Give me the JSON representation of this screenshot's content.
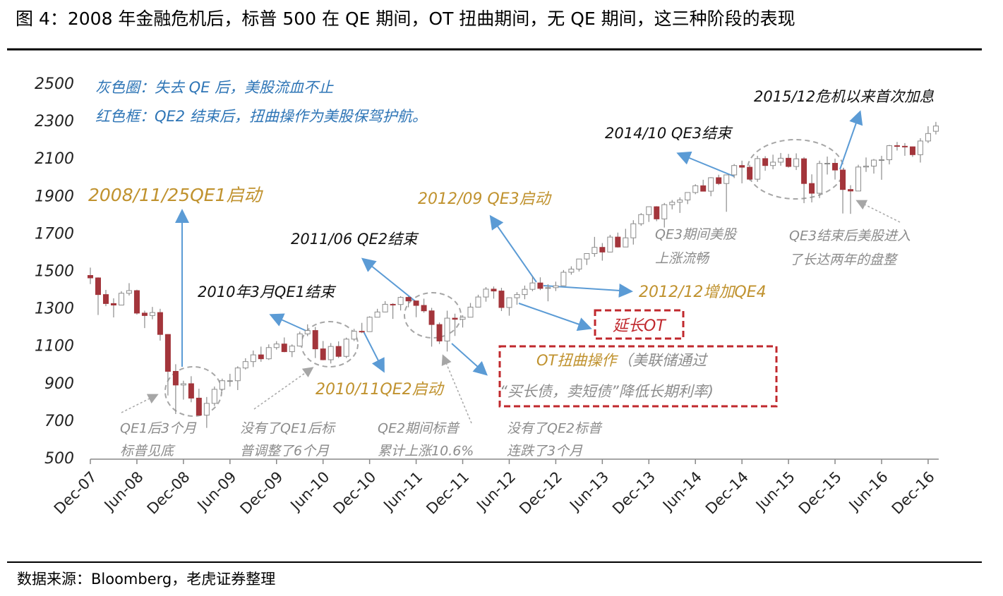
{
  "chart_data": {
    "type": "candlestick",
    "title": "图 4：2008 年金融危机后，标普 500 在 QE 期间，OT 扭曲期间，无 QE 期间，这三种阶段的表现",
    "source": "数据来源：Bloomberg，老虎证券整理",
    "up_color": "#ffffff",
    "down_color": "#a3353b",
    "edge_color": "#8c8c8c",
    "ylim": [
      500,
      2500
    ],
    "yticks": [
      500,
      700,
      900,
      1100,
      1300,
      1500,
      1700,
      1900,
      2100,
      2300,
      2500
    ],
    "categories": [
      "Dec-07",
      "Jan-08",
      "Feb-08",
      "Mar-08",
      "Apr-08",
      "May-08",
      "Jun-08",
      "Jul-08",
      "Aug-08",
      "Sep-08",
      "Oct-08",
      "Nov-08",
      "Dec-08",
      "Jan-09",
      "Feb-09",
      "Mar-09",
      "Apr-09",
      "May-09",
      "Jun-09",
      "Jul-09",
      "Aug-09",
      "Sep-09",
      "Oct-09",
      "Nov-09",
      "Dec-09",
      "Jan-10",
      "Feb-10",
      "Mar-10",
      "Apr-10",
      "May-10",
      "Jun-10",
      "Jul-10",
      "Aug-10",
      "Sep-10",
      "Oct-10",
      "Nov-10",
      "Dec-10",
      "Jan-11",
      "Feb-11",
      "Mar-11",
      "Apr-11",
      "May-11",
      "Jun-11",
      "Jul-11",
      "Aug-11",
      "Sep-11",
      "Oct-11",
      "Nov-11",
      "Dec-11",
      "Jan-12",
      "Feb-12",
      "Mar-12",
      "Apr-12",
      "May-12",
      "Jun-12",
      "Jul-12",
      "Aug-12",
      "Sep-12",
      "Oct-12",
      "Nov-12",
      "Dec-12",
      "Jan-13",
      "Feb-13",
      "Mar-13",
      "Apr-13",
      "May-13",
      "Jun-13",
      "Jul-13",
      "Aug-13",
      "Sep-13",
      "Oct-13",
      "Nov-13",
      "Dec-13",
      "Jan-14",
      "Feb-14",
      "Mar-14",
      "Apr-14",
      "May-14",
      "Jun-14",
      "Jul-14",
      "Aug-14",
      "Sep-14",
      "Oct-14",
      "Nov-14",
      "Dec-14",
      "Jan-15",
      "Feb-15",
      "Mar-15",
      "Apr-15",
      "May-15",
      "Jun-15",
      "Jul-15",
      "Aug-15",
      "Sep-15",
      "Oct-15",
      "Nov-15",
      "Dec-15",
      "Jan-16",
      "Feb-16",
      "Mar-16",
      "Apr-16",
      "May-16",
      "Jun-16",
      "Jul-16",
      "Aug-16",
      "Sep-16",
      "Oct-16",
      "Nov-16",
      "Dec-16",
      "Jan-17"
    ],
    "xticks": [
      "Dec-07",
      "Jun-08",
      "Dec-08",
      "Jun-09",
      "Dec-09",
      "Jun-10",
      "Dec-10",
      "Jun-11",
      "Dec-11",
      "Jun-12",
      "Dec-12",
      "Jun-13",
      "Dec-13",
      "Jun-14",
      "Dec-14",
      "Jun-15",
      "Dec-15",
      "Jun-16",
      "Dec-16"
    ],
    "open": [
      1481,
      1468,
      1379,
      1331,
      1323,
      1386,
      1400,
      1280,
      1267,
      1283,
      1166,
      969,
      896,
      903,
      826,
      735,
      798,
      873,
      919,
      919,
      987,
      1021,
      1057,
      1036,
      1096,
      1115,
      1074,
      1104,
      1169,
      1187,
      1089,
      1031,
      1102,
      1049,
      1141,
      1183,
      1181,
      1258,
      1286,
      1327,
      1326,
      1364,
      1345,
      1321,
      1292,
      1219,
      1131,
      1253,
      1247,
      1258,
      1312,
      1366,
      1408,
      1398,
      1310,
      1362,
      1379,
      1407,
      1441,
      1412,
      1416,
      1426,
      1498,
      1515,
      1569,
      1598,
      1631,
      1606,
      1686,
      1633,
      1682,
      1757,
      1806,
      1848,
      1783,
      1859,
      1872,
      1884,
      1924,
      1960,
      1931,
      2003,
      1972,
      2018,
      2068,
      2059,
      1995,
      2105,
      2068,
      2086,
      2107,
      2063,
      2104,
      1972,
      1920,
      2079,
      2080,
      2044,
      1940,
      1932,
      2060,
      2065,
      2097,
      2099,
      2174,
      2171,
      2168,
      2126,
      2199,
      2251
    ],
    "high": [
      1523,
      1471,
      1404,
      1359,
      1397,
      1440,
      1405,
      1293,
      1313,
      1303,
      1167,
      1007,
      919,
      943,
      876,
      832,
      888,
      930,
      956,
      996,
      1039,
      1080,
      1101,
      1113,
      1130,
      1150,
      1113,
      1181,
      1220,
      1206,
      1131,
      1120,
      1129,
      1149,
      1196,
      1228,
      1263,
      1303,
      1344,
      1333,
      1370,
      1371,
      1346,
      1357,
      1308,
      1230,
      1293,
      1277,
      1269,
      1334,
      1378,
      1419,
      1422,
      1415,
      1363,
      1392,
      1427,
      1475,
      1471,
      1434,
      1448,
      1510,
      1530,
      1570,
      1598,
      1687,
      1654,
      1698,
      1710,
      1730,
      1776,
      1814,
      1849,
      1851,
      1868,
      1884,
      1898,
      1925,
      1968,
      1992,
      2006,
      2019,
      2019,
      2076,
      2094,
      2072,
      2120,
      2118,
      2126,
      2135,
      2130,
      2133,
      2113,
      2021,
      2094,
      2116,
      2105,
      2044,
      1963,
      2072,
      2111,
      2103,
      2120,
      2178,
      2194,
      2188,
      2169,
      2214,
      2278,
      2301
    ],
    "low": [
      1435,
      1270,
      1317,
      1257,
      1324,
      1374,
      1272,
      1200,
      1247,
      1133,
      840,
      741,
      818,
      804,
      735,
      667,
      784,
      866,
      888,
      869,
      979,
      992,
      1020,
      1030,
      1085,
      1071,
      1045,
      1101,
      1157,
      1040,
      1028,
      1011,
      1040,
      1040,
      1131,
      1173,
      1181,
      1257,
      1284,
      1249,
      1294,
      1311,
      1258,
      1282,
      1101,
      1115,
      1075,
      1158,
      1203,
      1258,
      1311,
      1341,
      1357,
      1291,
      1266,
      1325,
      1354,
      1397,
      1403,
      1343,
      1398,
      1426,
      1485,
      1502,
      1537,
      1581,
      1560,
      1605,
      1630,
      1633,
      1646,
      1746,
      1767,
      1771,
      1737,
      1834,
      1815,
      1862,
      1915,
      1931,
      1904,
      1964,
      1821,
      2001,
      1973,
      1988,
      1981,
      2040,
      2048,
      2067,
      2057,
      2044,
      1867,
      1871,
      1894,
      2020,
      1993,
      1812,
      1810,
      1932,
      2034,
      2025,
      1992,
      2074,
      2148,
      2120,
      2114,
      2084,
      2188,
      2234
    ],
    "close": [
      1468,
      1379,
      1331,
      1323,
      1386,
      1400,
      1280,
      1267,
      1283,
      1166,
      969,
      896,
      903,
      826,
      735,
      798,
      873,
      919,
      919,
      987,
      1021,
      1057,
      1036,
      1096,
      1115,
      1074,
      1104,
      1169,
      1187,
      1089,
      1031,
      1102,
      1049,
      1141,
      1183,
      1181,
      1258,
      1286,
      1327,
      1326,
      1364,
      1345,
      1321,
      1292,
      1219,
      1131,
      1253,
      1247,
      1258,
      1312,
      1366,
      1408,
      1398,
      1310,
      1362,
      1379,
      1407,
      1441,
      1412,
      1416,
      1426,
      1498,
      1515,
      1569,
      1598,
      1631,
      1606,
      1686,
      1633,
      1682,
      1757,
      1806,
      1848,
      1783,
      1859,
      1872,
      1884,
      1924,
      1960,
      1931,
      2003,
      1972,
      2018,
      2068,
      2059,
      1995,
      2105,
      2068,
      2086,
      2107,
      2063,
      2104,
      1972,
      1920,
      2079,
      2080,
      2044,
      1940,
      1932,
      2060,
      2065,
      2097,
      2099,
      2174,
      2171,
      2168,
      2126,
      2199,
      2239,
      2279
    ],
    "annotations": [
      "灰色圈：失去 QE 后，美股流血不止",
      "红色框：QE2 结束后，扭曲操作为美股保驾护航。",
      "2008/11/25QE1启动",
      "2012/09 QE3启动",
      "2010/11QE2启动",
      "2012/12增加QE4",
      "延长OT",
      "2011/06 QE2结束",
      "2010年3月QE1结束",
      "2014/10 QE3结束",
      "2015/12危机以来首次加息",
      "QE1后3个月",
      "标普见底",
      "没有了QE1后标",
      "普调整了6个月",
      "QE2期间标普",
      "累计上涨10.6%",
      "没有了QE2标普",
      "连跌了3个月",
      "QE3期间美股",
      "上涨流畅",
      "QE3结束后美股进入",
      "了长达两年的盘整",
      "OT扭曲操作",
      "（美联储通过",
      "“买长债，卖短债”降低长期利率)"
    ]
  }
}
